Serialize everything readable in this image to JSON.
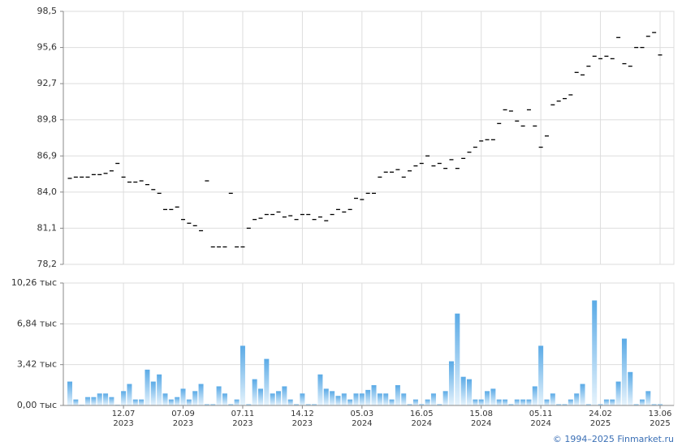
{
  "chart_data": [
    {
      "type": "scatter",
      "color": "#000000",
      "values": [
        85.1,
        85.2,
        85.2,
        85.2,
        85.4,
        85.4,
        85.5,
        85.7,
        86.3,
        85.2,
        84.8,
        84.8,
        84.9,
        84.6,
        84.2,
        83.9,
        82.6,
        82.6,
        82.8,
        81.8,
        81.5,
        81.3,
        80.9,
        84.9,
        79.6,
        79.6,
        79.6,
        83.9,
        79.6,
        79.6,
        81.1,
        81.8,
        81.9,
        82.2,
        82.2,
        82.4,
        82.0,
        82.1,
        81.8,
        82.2,
        82.2,
        81.8,
        82.0,
        81.7,
        82.2,
        82.6,
        82.4,
        82.6,
        83.5,
        83.4,
        83.9,
        83.9,
        85.2,
        85.6,
        85.6,
        85.8,
        85.2,
        85.7,
        86.1,
        86.3,
        86.9,
        86.1,
        86.3,
        85.9,
        86.6,
        85.9,
        86.7,
        87.2,
        87.6,
        88.1,
        88.2,
        88.2,
        89.5,
        90.6,
        90.5,
        89.7,
        89.3,
        90.6,
        89.3,
        87.6,
        88.5,
        91.0,
        91.3,
        91.5,
        91.8,
        93.6,
        93.4,
        94.1,
        94.9,
        94.7,
        94.9,
        94.7,
        96.4,
        94.3,
        94.1,
        95.6,
        95.6,
        96.5,
        96.8,
        95.0
      ],
      "ylim": [
        78.2,
        98.5
      ],
      "yticks": [
        {
          "value": 78.2,
          "label": "78,2"
        },
        {
          "value": 81.1,
          "label": "81,1"
        },
        {
          "value": 84.0,
          "label": "84,0"
        },
        {
          "value": 86.9,
          "label": "86,9"
        },
        {
          "value": 89.8,
          "label": "89,8"
        },
        {
          "value": 92.7,
          "label": "92,7"
        },
        {
          "value": 95.6,
          "label": "95,6"
        },
        {
          "value": 98.5,
          "label": "98,5"
        }
      ],
      "grid": true
    },
    {
      "type": "bar",
      "color": "#5aaae6",
      "categories": [
        null,
        null,
        null,
        null,
        null,
        null,
        null,
        null,
        null,
        "12.07\n2023",
        null,
        null,
        null,
        null,
        null,
        null,
        null,
        null,
        null,
        "07.09\n2023",
        null,
        null,
        null,
        null,
        null,
        null,
        null,
        null,
        null,
        "07.11\n2023",
        null,
        null,
        null,
        null,
        null,
        null,
        null,
        null,
        null,
        "14.12\n2023",
        null,
        null,
        null,
        null,
        null,
        null,
        null,
        null,
        null,
        "05.03\n2024",
        null,
        null,
        null,
        null,
        null,
        null,
        null,
        null,
        null,
        "16.05\n2024",
        null,
        null,
        null,
        null,
        null,
        null,
        null,
        null,
        null,
        "15.08\n2024",
        null,
        null,
        null,
        null,
        null,
        null,
        null,
        null,
        null,
        "05.11\n2024",
        null,
        null,
        null,
        null,
        null,
        null,
        null,
        null,
        null,
        "24.02\n2025",
        null,
        null,
        null,
        null,
        null,
        null,
        null,
        null,
        null,
        "13.06\n2025"
      ],
      "values": [
        2.0,
        0.5,
        0.05,
        0.7,
        0.7,
        1.0,
        1.0,
        0.7,
        0.05,
        1.2,
        1.8,
        0.5,
        0.5,
        3.0,
        2.0,
        2.6,
        1.0,
        0.5,
        0.7,
        1.4,
        0.5,
        1.2,
        1.8,
        0.1,
        0.1,
        1.6,
        1.0,
        0.1,
        0.5,
        5.0,
        0.1,
        2.2,
        1.4,
        3.9,
        1.0,
        1.2,
        1.6,
        0.5,
        0.1,
        1.0,
        0.1,
        0.1,
        2.6,
        1.4,
        1.2,
        0.8,
        1.0,
        0.5,
        1.0,
        1.0,
        1.3,
        1.7,
        1.0,
        1.0,
        0.5,
        1.7,
        1.0,
        0.1,
        0.5,
        0.1,
        0.5,
        1.0,
        0.1,
        1.2,
        3.7,
        7.7,
        2.4,
        2.2,
        0.5,
        0.5,
        1.2,
        1.4,
        0.5,
        0.5,
        0.1,
        0.5,
        0.5,
        0.5,
        1.6,
        5.0,
        0.5,
        1.0,
        0.1,
        0.1,
        0.5,
        1.0,
        1.8,
        0.1,
        8.8,
        0.1,
        0.5,
        0.5,
        2.0,
        5.6,
        2.8,
        0.1,
        0.5,
        1.2,
        0.1,
        0.1
      ],
      "ylim": [
        0,
        10.26
      ],
      "yticks": [
        {
          "value": 0,
          "label": "0,00 тыс"
        },
        {
          "value": 3.42,
          "label": "3,42 тыс"
        },
        {
          "value": 6.84,
          "label": "6,84 тыс"
        },
        {
          "value": 10.26,
          "label": "10,26 тыс"
        }
      ],
      "grid": true
    }
  ],
  "footer": "© 1994–2025 Finmarket.ru"
}
